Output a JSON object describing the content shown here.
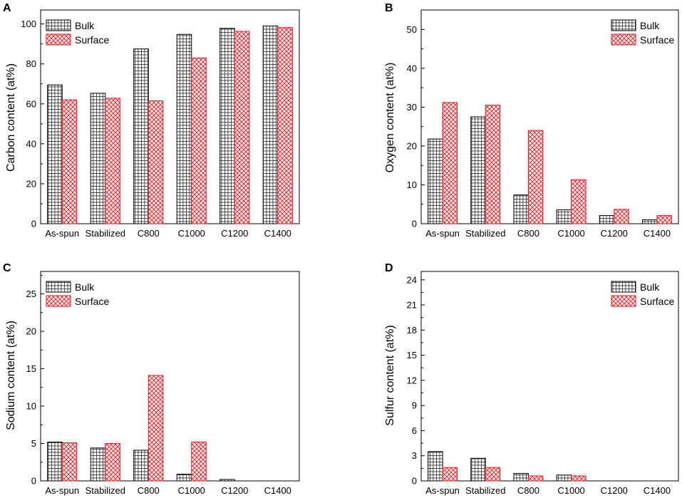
{
  "chart_data": [
    {
      "panel": "A",
      "type": "bar",
      "ylabel": "Carbon content (at%)",
      "ylim": [
        0,
        107
      ],
      "yticks": [
        0,
        20,
        40,
        60,
        80,
        100
      ],
      "categories": [
        "As-spun",
        "Stabilized",
        "C800",
        "C1000",
        "C1200",
        "C1400"
      ],
      "legend": "top-left",
      "series": [
        {
          "name": "Bulk",
          "values": [
            69.5,
            65.3,
            87.5,
            94.8,
            97.8,
            99.0
          ]
        },
        {
          "name": "Surface",
          "values": [
            62.0,
            62.8,
            61.5,
            83.0,
            96.3,
            98.2
          ]
        }
      ]
    },
    {
      "panel": "B",
      "type": "bar",
      "ylabel": "Oxygen content (at%)",
      "ylim": [
        0,
        55
      ],
      "yticks": [
        0,
        10,
        20,
        30,
        40,
        50
      ],
      "categories": [
        "As-spun",
        "Stabilized",
        "C800",
        "C1000",
        "C1200",
        "C1400"
      ],
      "legend": "top-right",
      "series": [
        {
          "name": "Bulk",
          "values": [
            21.8,
            27.5,
            7.4,
            3.6,
            2.1,
            1.0
          ]
        },
        {
          "name": "Surface",
          "values": [
            31.2,
            30.5,
            24.0,
            11.3,
            3.7,
            2.1
          ]
        }
      ]
    },
    {
      "panel": "C",
      "type": "bar",
      "ylabel": "Sodium content (at%)",
      "ylim": [
        0,
        28
      ],
      "yticks": [
        0,
        5,
        10,
        15,
        20,
        25
      ],
      "categories": [
        "As-spun",
        "Stabilized",
        "C800",
        "C1000",
        "C1200",
        "C1400"
      ],
      "legend": "top-left",
      "series": [
        {
          "name": "Bulk",
          "values": [
            5.2,
            4.4,
            4.1,
            0.9,
            0.2,
            0.0
          ]
        },
        {
          "name": "Surface",
          "values": [
            5.1,
            5.0,
            14.1,
            5.2,
            0.0,
            0.0
          ]
        }
      ]
    },
    {
      "panel": "D",
      "type": "bar",
      "ylabel": "Sulfur content (at%)",
      "ylim": [
        0,
        25
      ],
      "yticks": [
        0,
        3,
        6,
        9,
        12,
        15,
        18,
        21,
        24
      ],
      "categories": [
        "As-spun",
        "Stabilized",
        "C800",
        "C1000",
        "C1200",
        "C1400"
      ],
      "legend": "top-right",
      "series": [
        {
          "name": "Bulk",
          "values": [
            3.5,
            2.7,
            0.9,
            0.7,
            0.0,
            0.0
          ]
        },
        {
          "name": "Surface",
          "values": [
            1.6,
            1.6,
            0.6,
            0.6,
            0.0,
            0.0
          ]
        }
      ]
    }
  ],
  "style": {
    "bulk_stroke": "#000000",
    "bulk_hatch": "#444444",
    "surface_stroke": "#e8191f",
    "surface_hatch": "#e8191f"
  }
}
